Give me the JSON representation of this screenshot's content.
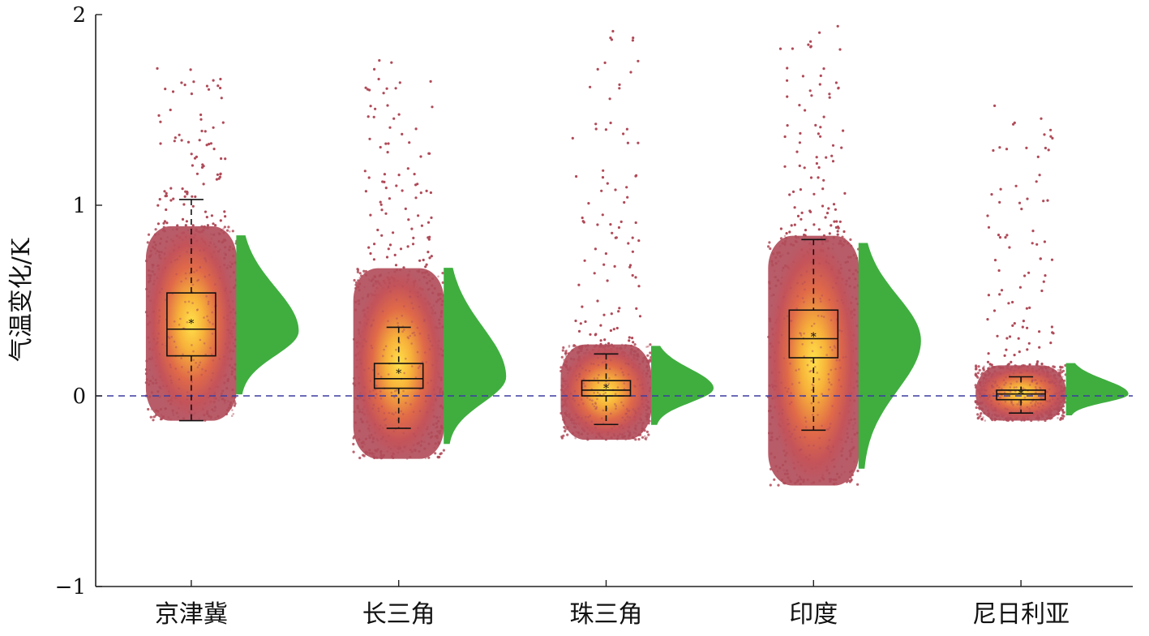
{
  "chart_data": {
    "type": "raincloud",
    "title": "",
    "xlabel": "",
    "ylabel": "气温变化/K",
    "ylim": [
      -1,
      2
    ],
    "yticks": [
      -1,
      0,
      1,
      2
    ],
    "ytick_labels": [
      "−1",
      "0",
      "1",
      "2"
    ],
    "reference_line": {
      "y": 0,
      "style": "dashed",
      "color": "#3c3ca0"
    },
    "grid": false,
    "colors": {
      "points": "#b04a58",
      "density_core": "#ffd23a",
      "density_mid": "#ef7a3a",
      "half_violin": "#3fae3f",
      "box": "#111111",
      "reference_line": "#3c3ca0"
    },
    "categories": [
      "京津冀",
      "长三角",
      "珠三角",
      "印度",
      "尼日利亚"
    ],
    "series": [
      {
        "category": "京津冀",
        "box": {
          "whisker_low": -0.13,
          "q1": 0.21,
          "median": 0.35,
          "q3": 0.54,
          "whisker_high": 1.03,
          "mean": 0.38
        },
        "core_range": [
          -0.13,
          0.89
        ],
        "outlier_max": 1.72,
        "violin_range": [
          0.01,
          0.84
        ],
        "violin_peak": 0.34
      },
      {
        "category": "长三角",
        "box": {
          "whisker_low": -0.17,
          "q1": 0.04,
          "median": 0.09,
          "q3": 0.17,
          "whisker_high": 0.36,
          "mean": 0.12
        },
        "core_range": [
          -0.33,
          0.67
        ],
        "outlier_max": 1.78,
        "violin_range": [
          -0.25,
          0.67
        ],
        "violin_peak": 0.1
      },
      {
        "category": "珠三角",
        "box": {
          "whisker_low": -0.15,
          "q1": 0.0,
          "median": 0.03,
          "q3": 0.08,
          "whisker_high": 0.22,
          "mean": 0.04
        },
        "core_range": [
          -0.23,
          0.27
        ],
        "outlier_max": 1.92,
        "violin_range": [
          -0.15,
          0.26
        ],
        "violin_peak": 0.04
      },
      {
        "category": "印度",
        "box": {
          "whisker_low": -0.18,
          "q1": 0.2,
          "median": 0.3,
          "q3": 0.45,
          "whisker_high": 0.82,
          "mean": 0.31
        },
        "core_range": [
          -0.47,
          0.84
        ],
        "outlier_max": 1.94,
        "violin_range": [
          -0.38,
          0.8
        ],
        "violin_peak": 0.29
      },
      {
        "category": "尼日利亚",
        "box": {
          "whisker_low": -0.09,
          "q1": -0.02,
          "median": 0.01,
          "q3": 0.03,
          "whisker_high": 0.1,
          "mean": 0.01
        },
        "core_range": [
          -0.13,
          0.16
        ],
        "outlier_max": 1.53,
        "violin_range": [
          -0.1,
          0.17
        ],
        "violin_peak": 0.01
      }
    ]
  }
}
